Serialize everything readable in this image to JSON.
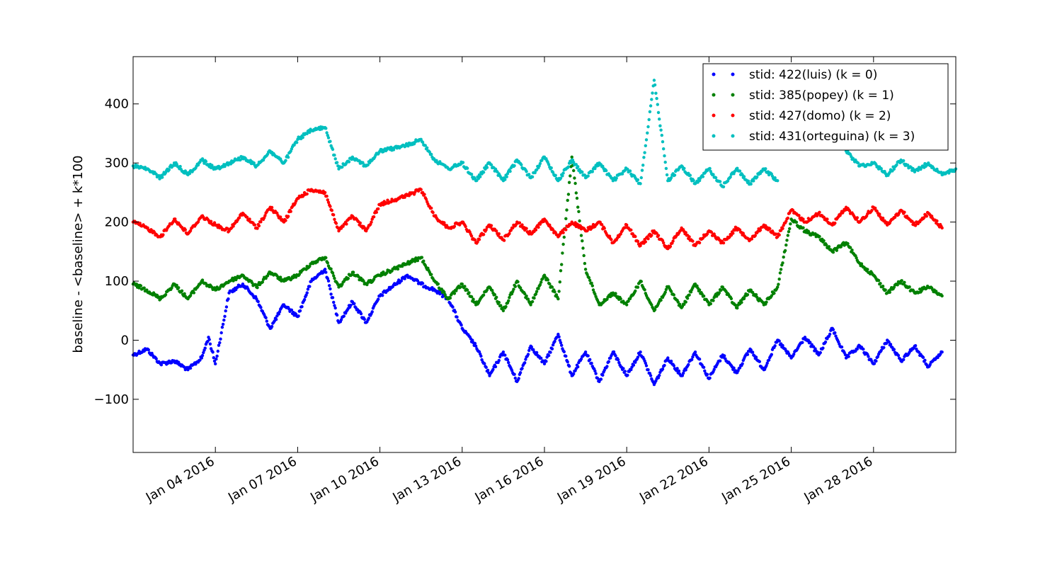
{
  "chart_data": {
    "type": "scatter",
    "title": "",
    "xlabel": "",
    "ylabel": "baseline - <baseline> + k*100",
    "x_range": [
      "2016-01-01",
      "2016-01-31"
    ],
    "ylim": [
      -190,
      480
    ],
    "x_ticks": [
      {
        "date": "2016-01-04",
        "label": "Jan 04 2016"
      },
      {
        "date": "2016-01-07",
        "label": "Jan 07 2016"
      },
      {
        "date": "2016-01-10",
        "label": "Jan 10 2016"
      },
      {
        "date": "2016-01-13",
        "label": "Jan 13 2016"
      },
      {
        "date": "2016-01-16",
        "label": "Jan 16 2016"
      },
      {
        "date": "2016-01-19",
        "label": "Jan 19 2016"
      },
      {
        "date": "2016-01-22",
        "label": "Jan 22 2016"
      },
      {
        "date": "2016-01-25",
        "label": "Jan 25 2016"
      },
      {
        "date": "2016-01-28",
        "label": "Jan 28 2016"
      }
    ],
    "y_ticks": [
      {
        "value": -100,
        "label": "−100"
      },
      {
        "value": 0,
        "label": "0"
      },
      {
        "value": 100,
        "label": "100"
      },
      {
        "value": 200,
        "label": "200"
      },
      {
        "value": 300,
        "label": "300"
      },
      {
        "value": 400,
        "label": "400"
      }
    ],
    "grid": false,
    "legend_position": "top-right",
    "series": [
      {
        "name": "stid: 422(luis) (k = 0)",
        "color": "#0000ff",
        "points": [
          [
            "2016-01-01",
            -25
          ],
          [
            "2016-01-01T12:00",
            -15
          ],
          [
            "2016-01-02",
            -40
          ],
          [
            "2016-01-02T12:00",
            -35
          ],
          [
            "2016-01-03",
            -50
          ],
          [
            "2016-01-03T12:00",
            -30
          ],
          [
            "2016-01-03T18:00",
            5
          ],
          [
            "2016-01-04",
            -40
          ],
          [
            "2016-01-04T12:00",
            80
          ],
          [
            "2016-01-05",
            95
          ],
          [
            "2016-01-05T12:00",
            70
          ],
          [
            "2016-01-06",
            20
          ],
          [
            "2016-01-06T12:00",
            60
          ],
          [
            "2016-01-07",
            40
          ],
          [
            "2016-01-07T12:00",
            100
          ],
          [
            "2016-01-08",
            120
          ],
          [
            "2016-01-08T12:00",
            30
          ],
          [
            "2016-01-09",
            65
          ],
          [
            "2016-01-09T12:00",
            30
          ],
          [
            "2016-01-10",
            75
          ],
          [
            "2016-01-11",
            110
          ],
          [
            "2016-01-11T12:00",
            95
          ],
          [
            "2016-01-12",
            85
          ],
          [
            "2016-01-12T12:00",
            70
          ],
          [
            "2016-01-13",
            20
          ],
          [
            "2016-01-13T12:00",
            -10
          ],
          [
            "2016-01-14",
            -60
          ],
          [
            "2016-01-14T12:00",
            -20
          ],
          [
            "2016-01-15",
            -70
          ],
          [
            "2016-01-15T12:00",
            -10
          ],
          [
            "2016-01-16",
            -40
          ],
          [
            "2016-01-16T12:00",
            10
          ],
          [
            "2016-01-17",
            -60
          ],
          [
            "2016-01-17T12:00",
            -20
          ],
          [
            "2016-01-18",
            -70
          ],
          [
            "2016-01-18T12:00",
            -20
          ],
          [
            "2016-01-19",
            -60
          ],
          [
            "2016-01-19T12:00",
            -20
          ],
          [
            "2016-01-20",
            -75
          ],
          [
            "2016-01-20T12:00",
            -30
          ],
          [
            "2016-01-21",
            -60
          ],
          [
            "2016-01-21T12:00",
            -20
          ],
          [
            "2016-01-22",
            -65
          ],
          [
            "2016-01-22T12:00",
            -25
          ],
          [
            "2016-01-23",
            -55
          ],
          [
            "2016-01-23T12:00",
            -15
          ],
          [
            "2016-01-24",
            -50
          ],
          [
            "2016-01-24T12:00",
            0
          ],
          [
            "2016-01-25",
            -30
          ],
          [
            "2016-01-25T12:00",
            5
          ],
          [
            "2016-01-26",
            -25
          ],
          [
            "2016-01-26T12:00",
            20
          ],
          [
            "2016-01-27",
            -30
          ],
          [
            "2016-01-27T12:00",
            -10
          ],
          [
            "2016-01-28",
            -40
          ],
          [
            "2016-01-28T12:00",
            0
          ],
          [
            "2016-01-29",
            -35
          ],
          [
            "2016-01-29T12:00",
            -10
          ],
          [
            "2016-01-30",
            -45
          ],
          [
            "2016-01-30T12:00",
            -20
          ]
        ]
      },
      {
        "name": "stid: 385(popey) (k = 1)",
        "color": "#008000",
        "points": [
          [
            "2016-01-01",
            95
          ],
          [
            "2016-01-01T12:00",
            85
          ],
          [
            "2016-01-02",
            70
          ],
          [
            "2016-01-02T12:00",
            95
          ],
          [
            "2016-01-03",
            70
          ],
          [
            "2016-01-03T12:00",
            100
          ],
          [
            "2016-01-04",
            85
          ],
          [
            "2016-01-04T12:00",
            100
          ],
          [
            "2016-01-05",
            110
          ],
          [
            "2016-01-05T12:00",
            90
          ],
          [
            "2016-01-06",
            115
          ],
          [
            "2016-01-06T12:00",
            100
          ],
          [
            "2016-01-07",
            110
          ],
          [
            "2016-01-07T12:00",
            130
          ],
          [
            "2016-01-08",
            140
          ],
          [
            "2016-01-08T12:00",
            90
          ],
          [
            "2016-01-09",
            115
          ],
          [
            "2016-01-09T12:00",
            95
          ],
          [
            "2016-01-10",
            110
          ],
          [
            "2016-01-11",
            130
          ],
          [
            "2016-01-11T12:00",
            140
          ],
          [
            "2016-01-12",
            100
          ],
          [
            "2016-01-12T12:00",
            70
          ],
          [
            "2016-01-13",
            95
          ],
          [
            "2016-01-13T12:00",
            60
          ],
          [
            "2016-01-14",
            90
          ],
          [
            "2016-01-14T12:00",
            50
          ],
          [
            "2016-01-15",
            100
          ],
          [
            "2016-01-15T12:00",
            60
          ],
          [
            "2016-01-16",
            110
          ],
          [
            "2016-01-16T12:00",
            70
          ],
          [
            "2016-01-17",
            310
          ],
          [
            "2016-01-17T12:00",
            120
          ],
          [
            "2016-01-18",
            60
          ],
          [
            "2016-01-18T12:00",
            80
          ],
          [
            "2016-01-19",
            60
          ],
          [
            "2016-01-19T12:00",
            100
          ],
          [
            "2016-01-20",
            50
          ],
          [
            "2016-01-20T12:00",
            90
          ],
          [
            "2016-01-21",
            55
          ],
          [
            "2016-01-21T12:00",
            95
          ],
          [
            "2016-01-22",
            60
          ],
          [
            "2016-01-22T12:00",
            90
          ],
          [
            "2016-01-23",
            55
          ],
          [
            "2016-01-23T12:00",
            85
          ],
          [
            "2016-01-24",
            60
          ],
          [
            "2016-01-24T12:00",
            90
          ],
          [
            "2016-01-25",
            205
          ],
          [
            "2016-01-25T12:00",
            185
          ],
          [
            "2016-01-26",
            175
          ],
          [
            "2016-01-26T12:00",
            150
          ],
          [
            "2016-01-27",
            165
          ],
          [
            "2016-01-27T12:00",
            130
          ],
          [
            "2016-01-28",
            110
          ],
          [
            "2016-01-28T12:00",
            80
          ],
          [
            "2016-01-29",
            100
          ],
          [
            "2016-01-29T12:00",
            80
          ],
          [
            "2016-01-30",
            90
          ],
          [
            "2016-01-30T12:00",
            75
          ]
        ]
      },
      {
        "name": "stid: 427(domo) (k = 2)",
        "color": "#ff0000",
        "points": [
          [
            "2016-01-01",
            200
          ],
          [
            "2016-01-01T12:00",
            190
          ],
          [
            "2016-01-02",
            175
          ],
          [
            "2016-01-02T12:00",
            205
          ],
          [
            "2016-01-03",
            180
          ],
          [
            "2016-01-03T12:00",
            210
          ],
          [
            "2016-01-04",
            195
          ],
          [
            "2016-01-04T12:00",
            185
          ],
          [
            "2016-01-05",
            215
          ],
          [
            "2016-01-05T12:00",
            190
          ],
          [
            "2016-01-06",
            225
          ],
          [
            "2016-01-06T12:00",
            200
          ],
          [
            "2016-01-07",
            240
          ],
          [
            "2016-01-07T12:00",
            255
          ],
          [
            "2016-01-08",
            250
          ],
          [
            "2016-01-08T12:00",
            185
          ],
          [
            "2016-01-09",
            210
          ],
          [
            "2016-01-09T12:00",
            185
          ],
          [
            "2016-01-10",
            230
          ],
          [
            "2016-01-11",
            245
          ],
          [
            "2016-01-11T12:00",
            255
          ],
          [
            "2016-01-12",
            210
          ],
          [
            "2016-01-12T12:00",
            190
          ],
          [
            "2016-01-13",
            200
          ],
          [
            "2016-01-13T12:00",
            165
          ],
          [
            "2016-01-14",
            195
          ],
          [
            "2016-01-14T12:00",
            170
          ],
          [
            "2016-01-15",
            200
          ],
          [
            "2016-01-15T12:00",
            180
          ],
          [
            "2016-01-16",
            205
          ],
          [
            "2016-01-16T12:00",
            175
          ],
          [
            "2016-01-17",
            200
          ],
          [
            "2016-01-17T12:00",
            185
          ],
          [
            "2016-01-18",
            200
          ],
          [
            "2016-01-18T12:00",
            165
          ],
          [
            "2016-01-19",
            195
          ],
          [
            "2016-01-19T12:00",
            160
          ],
          [
            "2016-01-20",
            185
          ],
          [
            "2016-01-20T12:00",
            155
          ],
          [
            "2016-01-21",
            190
          ],
          [
            "2016-01-21T12:00",
            160
          ],
          [
            "2016-01-22",
            185
          ],
          [
            "2016-01-22T12:00",
            165
          ],
          [
            "2016-01-23",
            190
          ],
          [
            "2016-01-23T12:00",
            170
          ],
          [
            "2016-01-24",
            195
          ],
          [
            "2016-01-24T12:00",
            175
          ],
          [
            "2016-01-25",
            220
          ],
          [
            "2016-01-25T12:00",
            200
          ],
          [
            "2016-01-26",
            215
          ],
          [
            "2016-01-26T12:00",
            195
          ],
          [
            "2016-01-27",
            225
          ],
          [
            "2016-01-27T12:00",
            200
          ],
          [
            "2016-01-28",
            225
          ],
          [
            "2016-01-28T12:00",
            195
          ],
          [
            "2016-01-29",
            220
          ],
          [
            "2016-01-29T12:00",
            195
          ],
          [
            "2016-01-30",
            215
          ],
          [
            "2016-01-30T12:00",
            190
          ]
        ]
      },
      {
        "name": "stid: 431(orteguina) (k = 3)",
        "color": "#00bfbf",
        "points": [
          [
            "2016-01-01",
            295
          ],
          [
            "2016-01-01T12:00",
            290
          ],
          [
            "2016-01-02",
            275
          ],
          [
            "2016-01-02T12:00",
            300
          ],
          [
            "2016-01-03",
            280
          ],
          [
            "2016-01-03T12:00",
            305
          ],
          [
            "2016-01-04",
            290
          ],
          [
            "2016-01-04T12:00",
            300
          ],
          [
            "2016-01-05",
            310
          ],
          [
            "2016-01-05T12:00",
            295
          ],
          [
            "2016-01-06",
            320
          ],
          [
            "2016-01-06T12:00",
            300
          ],
          [
            "2016-01-07",
            340
          ],
          [
            "2016-01-07T12:00",
            355
          ],
          [
            "2016-01-08",
            360
          ],
          [
            "2016-01-08T12:00",
            290
          ],
          [
            "2016-01-09",
            310
          ],
          [
            "2016-01-09T12:00",
            295
          ],
          [
            "2016-01-10",
            320
          ],
          [
            "2016-01-11",
            330
          ],
          [
            "2016-01-11T12:00",
            340
          ],
          [
            "2016-01-12",
            305
          ],
          [
            "2016-01-12T12:00",
            290
          ],
          [
            "2016-01-13",
            300
          ],
          [
            "2016-01-13T12:00",
            270
          ],
          [
            "2016-01-14",
            300
          ],
          [
            "2016-01-14T12:00",
            270
          ],
          [
            "2016-01-15",
            305
          ],
          [
            "2016-01-15T12:00",
            275
          ],
          [
            "2016-01-16",
            310
          ],
          [
            "2016-01-16T12:00",
            270
          ],
          [
            "2016-01-17",
            305
          ],
          [
            "2016-01-17T12:00",
            275
          ],
          [
            "2016-01-18",
            300
          ],
          [
            "2016-01-18T12:00",
            270
          ],
          [
            "2016-01-19",
            290
          ],
          [
            "2016-01-19T12:00",
            265
          ],
          [
            "2016-01-20",
            440
          ],
          [
            "2016-01-20T12:00",
            270
          ],
          [
            "2016-01-21",
            295
          ],
          [
            "2016-01-21T12:00",
            265
          ],
          [
            "2016-01-22",
            290
          ],
          [
            "2016-01-22T12:00",
            260
          ],
          [
            "2016-01-23",
            290
          ],
          [
            "2016-01-23T12:00",
            265
          ],
          [
            "2016-01-24",
            290
          ],
          [
            "2016-01-24T12:00",
            270
          ],
          [
            "2016-01-27",
            320
          ],
          [
            "2016-01-27T12:00",
            295
          ],
          [
            "2016-01-28",
            300
          ],
          [
            "2016-01-28T12:00",
            280
          ],
          [
            "2016-01-29",
            305
          ],
          [
            "2016-01-29T12:00",
            285
          ],
          [
            "2016-01-30",
            300
          ],
          [
            "2016-01-30T12:00",
            280
          ],
          [
            "2016-01-31",
            290
          ]
        ]
      }
    ]
  }
}
